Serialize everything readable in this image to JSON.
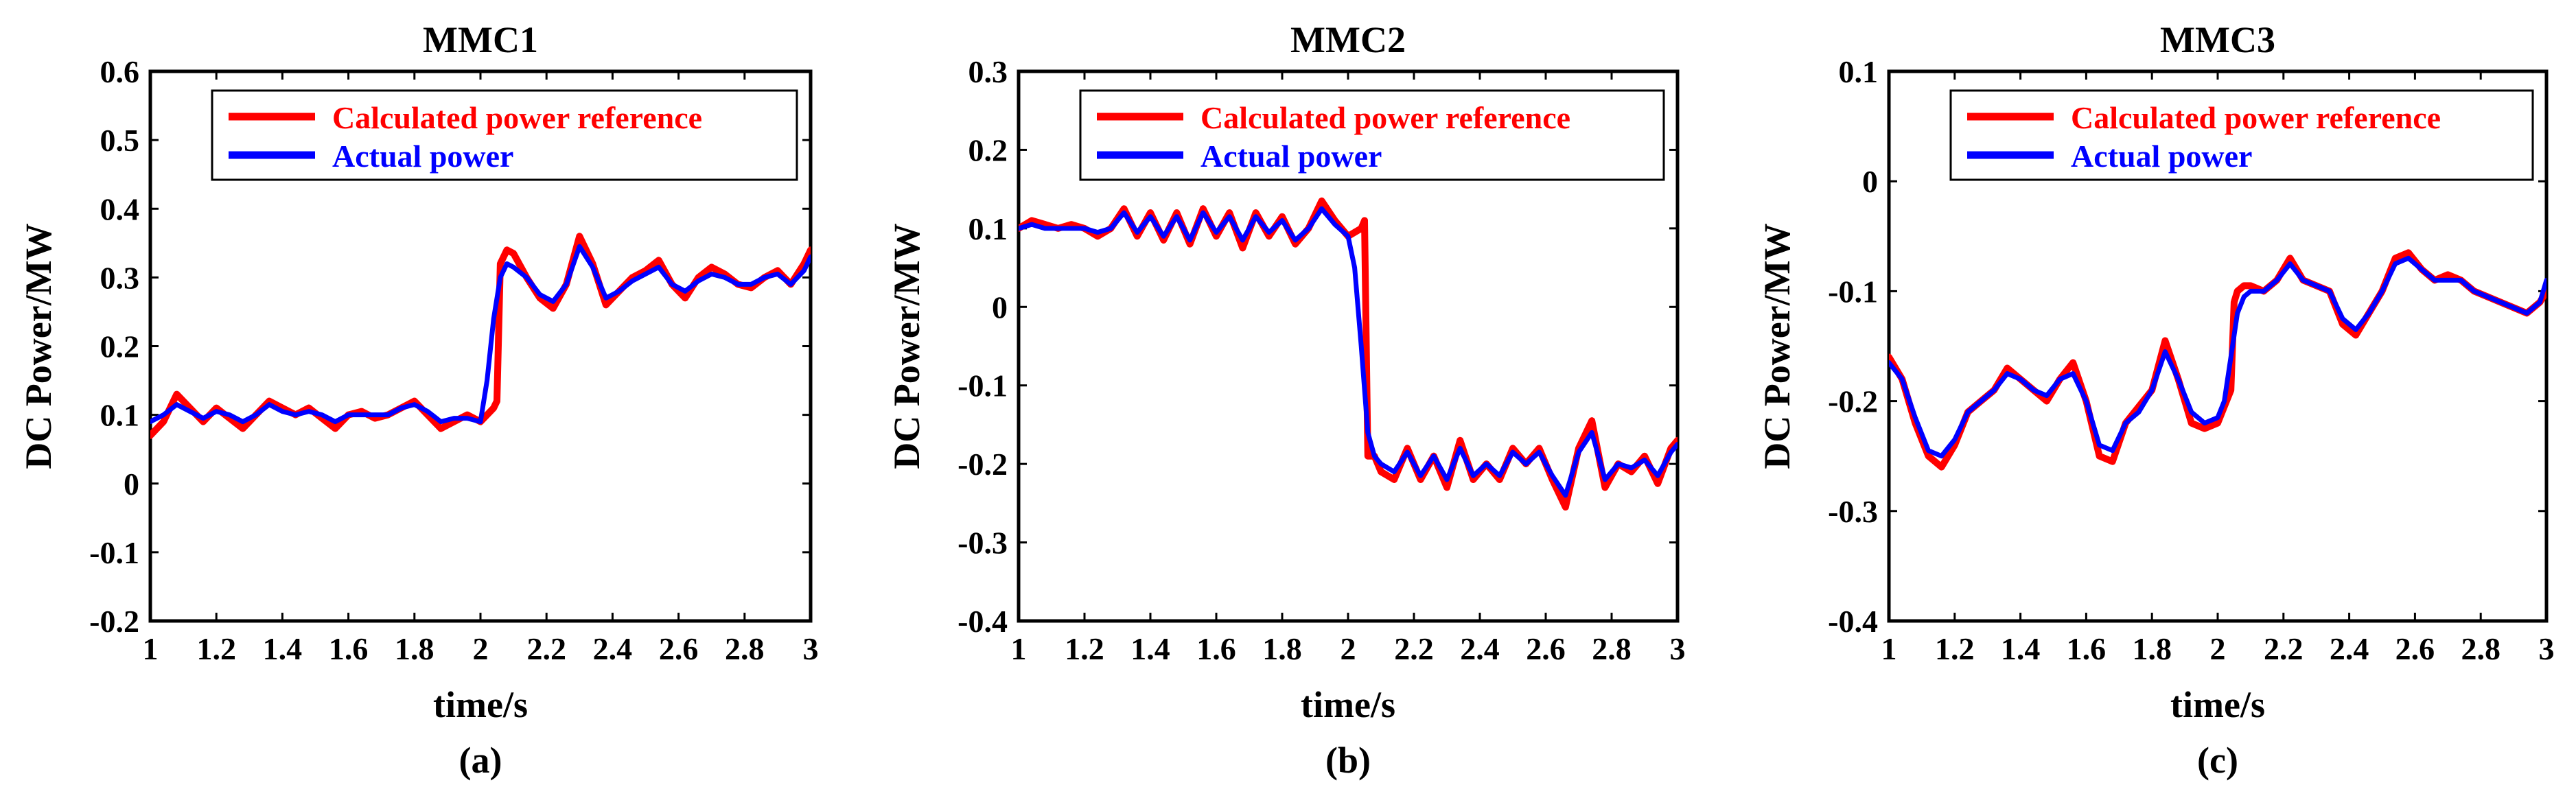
{
  "colors": {
    "reference": "#ff0000",
    "actual": "#0000ff",
    "axis": "#000000"
  },
  "chart_data": [
    {
      "type": "line",
      "title": "MMC1",
      "xlabel": "time/s",
      "ylabel": "DC Power/MW",
      "caption": "(a)",
      "xlim": [
        1,
        3
      ],
      "ylim": [
        -0.2,
        0.6
      ],
      "xticks": [
        "1",
        "1.2",
        "1.4",
        "1.6",
        "1.8",
        "2",
        "2.2",
        "2.4",
        "2.6",
        "2.8",
        "3"
      ],
      "yticks": [
        "-0.2",
        "-0.1",
        "0",
        "0.1",
        "0.2",
        "0.3",
        "0.4",
        "0.5",
        "0.6"
      ],
      "legend": [
        "Calculated power reference",
        "Actual power"
      ],
      "legend_position": "top-right",
      "series": [
        {
          "name": "Calculated power reference",
          "x": [
            1,
            1.04,
            1.08,
            1.12,
            1.16,
            1.2,
            1.24,
            1.28,
            1.32,
            1.36,
            1.4,
            1.44,
            1.48,
            1.52,
            1.56,
            1.6,
            1.64,
            1.68,
            1.72,
            1.76,
            1.8,
            1.84,
            1.88,
            1.92,
            1.96,
            2.0,
            2.04,
            2.05,
            2.06,
            2.08,
            2.1,
            2.14,
            2.18,
            2.22,
            2.26,
            2.3,
            2.34,
            2.38,
            2.42,
            2.46,
            2.5,
            2.54,
            2.58,
            2.62,
            2.66,
            2.7,
            2.74,
            2.78,
            2.82,
            2.86,
            2.9,
            2.94,
            2.98,
            3.0
          ],
          "y": [
            0.07,
            0.09,
            0.13,
            0.11,
            0.09,
            0.11,
            0.095,
            0.08,
            0.1,
            0.12,
            0.11,
            0.1,
            0.11,
            0.095,
            0.08,
            0.1,
            0.105,
            0.095,
            0.1,
            0.11,
            0.12,
            0.1,
            0.08,
            0.09,
            0.1,
            0.09,
            0.11,
            0.12,
            0.32,
            0.34,
            0.335,
            0.3,
            0.27,
            0.255,
            0.29,
            0.36,
            0.32,
            0.26,
            0.28,
            0.3,
            0.31,
            0.325,
            0.29,
            0.27,
            0.3,
            0.315,
            0.305,
            0.29,
            0.285,
            0.3,
            0.31,
            0.29,
            0.32,
            0.34
          ]
        },
        {
          "name": "Actual power",
          "x": [
            1,
            1.04,
            1.08,
            1.12,
            1.16,
            1.2,
            1.24,
            1.28,
            1.32,
            1.36,
            1.4,
            1.44,
            1.48,
            1.52,
            1.56,
            1.6,
            1.64,
            1.68,
            1.72,
            1.76,
            1.8,
            1.84,
            1.88,
            1.92,
            1.96,
            2.0,
            2.02,
            2.04,
            2.06,
            2.08,
            2.1,
            2.14,
            2.18,
            2.22,
            2.26,
            2.3,
            2.34,
            2.38,
            2.42,
            2.46,
            2.5,
            2.54,
            2.58,
            2.62,
            2.66,
            2.7,
            2.74,
            2.78,
            2.82,
            2.86,
            2.9,
            2.94,
            2.98,
            3.0
          ],
          "y": [
            0.09,
            0.1,
            0.115,
            0.105,
            0.095,
            0.105,
            0.1,
            0.09,
            0.1,
            0.115,
            0.105,
            0.1,
            0.105,
            0.1,
            0.09,
            0.1,
            0.1,
            0.1,
            0.1,
            0.11,
            0.115,
            0.105,
            0.09,
            0.095,
            0.095,
            0.09,
            0.15,
            0.24,
            0.3,
            0.32,
            0.315,
            0.3,
            0.275,
            0.265,
            0.29,
            0.345,
            0.315,
            0.27,
            0.28,
            0.295,
            0.305,
            0.315,
            0.29,
            0.28,
            0.295,
            0.305,
            0.3,
            0.29,
            0.29,
            0.3,
            0.305,
            0.29,
            0.31,
            0.33
          ]
        }
      ]
    },
    {
      "type": "line",
      "title": "MMC2",
      "xlabel": "time/s",
      "ylabel": "DC Power/MW",
      "caption": "(b)",
      "xlim": [
        1,
        3
      ],
      "ylim": [
        -0.4,
        0.3
      ],
      "xticks": [
        "1",
        "1.2",
        "1.4",
        "1.6",
        "1.8",
        "2",
        "2.2",
        "2.4",
        "2.6",
        "2.8",
        "3"
      ],
      "yticks": [
        "-0.4",
        "-0.3",
        "-0.2",
        "-0.1",
        "0",
        "0.1",
        "0.2",
        "0.3"
      ],
      "legend": [
        "Calculated power reference",
        "Actual power"
      ],
      "legend_position": "top-right",
      "series": [
        {
          "name": "Calculated power reference",
          "x": [
            1,
            1.04,
            1.08,
            1.12,
            1.16,
            1.2,
            1.24,
            1.28,
            1.32,
            1.36,
            1.4,
            1.44,
            1.48,
            1.52,
            1.56,
            1.6,
            1.64,
            1.68,
            1.72,
            1.76,
            1.8,
            1.84,
            1.88,
            1.92,
            1.96,
            2.0,
            2.04,
            2.05,
            2.06,
            2.08,
            2.1,
            2.14,
            2.18,
            2.22,
            2.26,
            2.3,
            2.34,
            2.38,
            2.42,
            2.46,
            2.5,
            2.54,
            2.58,
            2.62,
            2.66,
            2.7,
            2.74,
            2.78,
            2.82,
            2.86,
            2.9,
            2.94,
            2.98,
            3.0
          ],
          "y": [
            0.1,
            0.11,
            0.105,
            0.1,
            0.105,
            0.1,
            0.09,
            0.1,
            0.125,
            0.09,
            0.12,
            0.085,
            0.12,
            0.08,
            0.125,
            0.09,
            0.12,
            0.075,
            0.12,
            0.09,
            0.115,
            0.08,
            0.1,
            0.135,
            0.11,
            0.09,
            0.1,
            0.11,
            -0.19,
            -0.19,
            -0.21,
            -0.22,
            -0.18,
            -0.22,
            -0.19,
            -0.23,
            -0.17,
            -0.22,
            -0.2,
            -0.22,
            -0.18,
            -0.2,
            -0.18,
            -0.22,
            -0.255,
            -0.18,
            -0.145,
            -0.23,
            -0.2,
            -0.21,
            -0.19,
            -0.225,
            -0.18,
            -0.17
          ]
        },
        {
          "name": "Actual power",
          "x": [
            1,
            1.04,
            1.08,
            1.12,
            1.16,
            1.2,
            1.24,
            1.28,
            1.32,
            1.36,
            1.4,
            1.44,
            1.48,
            1.52,
            1.56,
            1.6,
            1.64,
            1.68,
            1.72,
            1.76,
            1.8,
            1.84,
            1.88,
            1.92,
            1.96,
            2.0,
            2.02,
            2.04,
            2.06,
            2.08,
            2.1,
            2.14,
            2.18,
            2.22,
            2.26,
            2.3,
            2.34,
            2.38,
            2.42,
            2.46,
            2.5,
            2.54,
            2.58,
            2.62,
            2.66,
            2.7,
            2.74,
            2.78,
            2.82,
            2.86,
            2.9,
            2.94,
            2.98,
            3.0
          ],
          "y": [
            0.1,
            0.105,
            0.1,
            0.1,
            0.1,
            0.1,
            0.095,
            0.1,
            0.12,
            0.095,
            0.115,
            0.09,
            0.115,
            0.085,
            0.12,
            0.095,
            0.115,
            0.085,
            0.115,
            0.095,
            0.11,
            0.085,
            0.1,
            0.125,
            0.105,
            0.09,
            0.05,
            -0.05,
            -0.16,
            -0.19,
            -0.2,
            -0.21,
            -0.185,
            -0.215,
            -0.19,
            -0.22,
            -0.18,
            -0.215,
            -0.2,
            -0.215,
            -0.185,
            -0.2,
            -0.185,
            -0.215,
            -0.24,
            -0.185,
            -0.16,
            -0.22,
            -0.2,
            -0.205,
            -0.195,
            -0.215,
            -0.185,
            -0.175
          ]
        }
      ]
    },
    {
      "type": "line",
      "title": "MMC3",
      "xlabel": "time/s",
      "ylabel": "DC Power/MW",
      "caption": "(c)",
      "xlim": [
        1,
        3
      ],
      "ylim": [
        -0.4,
        0.1
      ],
      "xticks": [
        "1",
        "1.2",
        "1.4",
        "1.6",
        "1.8",
        "2",
        "2.2",
        "2.4",
        "2.6",
        "2.8",
        "3"
      ],
      "yticks": [
        "-0.4",
        "-0.3",
        "-0.2",
        "-0.1",
        "0",
        "0.1"
      ],
      "legend": [
        "Calculated power reference",
        "Actual power"
      ],
      "legend_position": "top-right",
      "series": [
        {
          "name": "Calculated power reference",
          "x": [
            1,
            1.04,
            1.08,
            1.12,
            1.16,
            1.2,
            1.24,
            1.28,
            1.32,
            1.36,
            1.4,
            1.44,
            1.48,
            1.52,
            1.56,
            1.6,
            1.64,
            1.68,
            1.72,
            1.76,
            1.8,
            1.84,
            1.88,
            1.92,
            1.96,
            2.0,
            2.04,
            2.05,
            2.06,
            2.08,
            2.1,
            2.14,
            2.18,
            2.22,
            2.26,
            2.3,
            2.34,
            2.38,
            2.42,
            2.46,
            2.5,
            2.54,
            2.58,
            2.62,
            2.66,
            2.7,
            2.74,
            2.78,
            2.82,
            2.86,
            2.9,
            2.94,
            2.98,
            3.0
          ],
          "y": [
            -0.16,
            -0.18,
            -0.22,
            -0.25,
            -0.26,
            -0.24,
            -0.21,
            -0.2,
            -0.19,
            -0.17,
            -0.18,
            -0.19,
            -0.2,
            -0.18,
            -0.165,
            -0.2,
            -0.25,
            -0.255,
            -0.22,
            -0.205,
            -0.19,
            -0.145,
            -0.18,
            -0.22,
            -0.225,
            -0.22,
            -0.19,
            -0.11,
            -0.1,
            -0.095,
            -0.095,
            -0.1,
            -0.09,
            -0.07,
            -0.09,
            -0.095,
            -0.1,
            -0.13,
            -0.14,
            -0.12,
            -0.1,
            -0.07,
            -0.065,
            -0.08,
            -0.09,
            -0.085,
            -0.09,
            -0.1,
            -0.105,
            -0.11,
            -0.115,
            -0.12,
            -0.11,
            -0.1
          ]
        },
        {
          "name": "Actual power",
          "x": [
            1,
            1.04,
            1.08,
            1.12,
            1.16,
            1.2,
            1.24,
            1.28,
            1.32,
            1.36,
            1.4,
            1.44,
            1.48,
            1.52,
            1.56,
            1.6,
            1.64,
            1.68,
            1.72,
            1.76,
            1.8,
            1.84,
            1.88,
            1.92,
            1.96,
            2.0,
            2.02,
            2.04,
            2.06,
            2.08,
            2.1,
            2.14,
            2.18,
            2.22,
            2.26,
            2.3,
            2.34,
            2.38,
            2.42,
            2.46,
            2.5,
            2.54,
            2.58,
            2.62,
            2.66,
            2.7,
            2.74,
            2.78,
            2.82,
            2.86,
            2.9,
            2.94,
            2.98,
            3.0
          ],
          "y": [
            -0.165,
            -0.18,
            -0.215,
            -0.245,
            -0.25,
            -0.235,
            -0.21,
            -0.2,
            -0.19,
            -0.175,
            -0.18,
            -0.19,
            -0.195,
            -0.18,
            -0.175,
            -0.2,
            -0.24,
            -0.245,
            -0.22,
            -0.21,
            -0.19,
            -0.155,
            -0.18,
            -0.21,
            -0.22,
            -0.215,
            -0.2,
            -0.16,
            -0.12,
            -0.105,
            -0.1,
            -0.1,
            -0.09,
            -0.075,
            -0.09,
            -0.095,
            -0.1,
            -0.125,
            -0.135,
            -0.12,
            -0.1,
            -0.075,
            -0.07,
            -0.08,
            -0.09,
            -0.09,
            -0.09,
            -0.1,
            -0.105,
            -0.11,
            -0.115,
            -0.12,
            -0.11,
            -0.09
          ]
        }
      ]
    }
  ]
}
